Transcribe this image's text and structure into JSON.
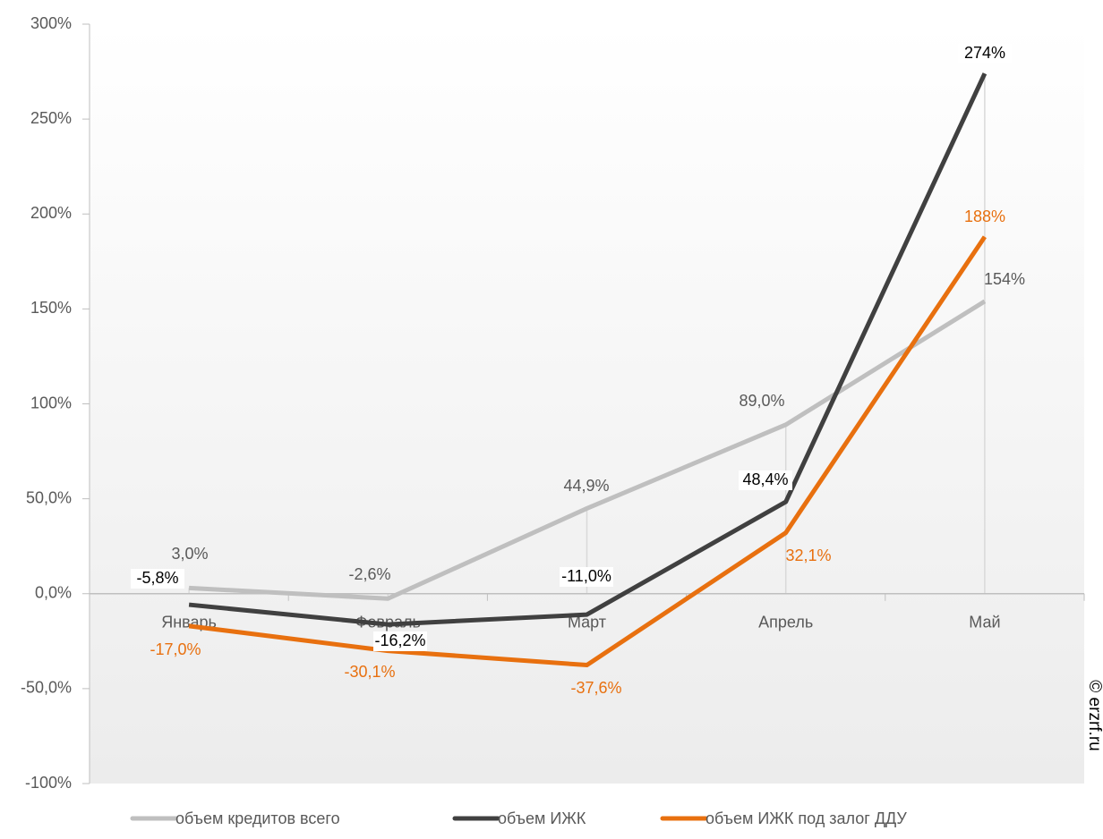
{
  "chart_data": {
    "type": "line",
    "categories": [
      "Январь",
      "Февраль",
      "Март",
      "Апрель",
      "Май"
    ],
    "series": [
      {
        "name": "объем кредитов всего",
        "color": "#bfbfbf",
        "values": [
          3.0,
          -2.6,
          44.9,
          89.0,
          154
        ],
        "value_labels": [
          "3,0%",
          "-2,6%",
          "44,9%",
          "89,0%",
          "154%"
        ]
      },
      {
        "name": "объем ИЖК",
        "color": "#404040",
        "values": [
          -5.8,
          -16.2,
          -11.0,
          48.4,
          274
        ],
        "value_labels": [
          "-5,8%",
          "-16,2%",
          "-11,0%",
          "48,4%",
          "274%"
        ]
      },
      {
        "name": "объем ИЖК под залог ДДУ",
        "color": "#e8700f",
        "values": [
          -17.0,
          -30.1,
          -37.6,
          32.1,
          188
        ],
        "value_labels": [
          "-17,0%",
          "-30,1%",
          "-37,6%",
          "32,1%",
          "188%"
        ]
      }
    ],
    "ylim": [
      -100,
      300
    ],
    "yticks": [
      {
        "value": -100,
        "label": "-100%"
      },
      {
        "value": -50,
        "label": "-50,0%"
      },
      {
        "value": 0,
        "label": "0,0%"
      },
      {
        "value": 50,
        "label": "50,0%"
      },
      {
        "value": 100,
        "label": "100%"
      },
      {
        "value": 150,
        "label": "150%"
      },
      {
        "value": 200,
        "label": "200%"
      },
      {
        "value": 250,
        "label": "250%"
      },
      {
        "value": 300,
        "label": "300%"
      }
    ],
    "legend": "bottom",
    "watermark": "© erzrf.ru"
  }
}
